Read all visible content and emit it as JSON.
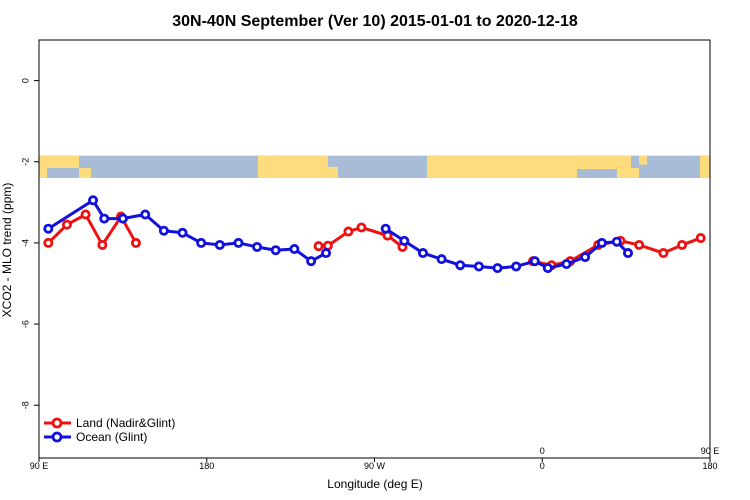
{
  "chart_data": {
    "type": "line",
    "title": "30N-40N September (Ver 10)   2015-01-01 to 2020-12-18",
    "xlabel": "Longitude (deg E)",
    "ylabel": "XCO2 - MLO trend (ppm)",
    "xlim": [
      90,
      450
    ],
    "ylim": [
      -9.3,
      1.0
    ],
    "xticks": [
      {
        "value": 90,
        "label": "90 E"
      },
      {
        "value": 180,
        "label": "180"
      },
      {
        "value": 270,
        "label": "90 W"
      },
      {
        "value": 360,
        "label": "0"
      },
      {
        "value": 450,
        "label": "180"
      }
    ],
    "xticks_top": [
      {
        "value": 360,
        "label": "0"
      },
      {
        "value": 450,
        "label": "90 E"
      }
    ],
    "yticks": [
      {
        "value": 0,
        "label": "0"
      },
      {
        "value": -2,
        "label": "-2"
      },
      {
        "value": -4,
        "label": "-4"
      },
      {
        "value": -6,
        "label": "-6"
      },
      {
        "value": -8,
        "label": "-8"
      }
    ],
    "map_band": {
      "y_top": -1.85,
      "y_bottom": -2.4,
      "ocean_color": "#a8bcd8",
      "land_color": "#fcdc7c"
    },
    "legend_position": "bottom-left",
    "series": [
      {
        "name": "Land (Nadir&Glint)",
        "color": "#ee1111",
        "x": [
          95,
          105,
          115,
          124,
          134,
          142
        ],
        "y": [
          -4.0,
          -3.55,
          -3.3,
          -4.05,
          -3.35,
          -4.0
        ],
        "x2": [
          240,
          245,
          256,
          263,
          277,
          285
        ],
        "y2": [
          -4.08,
          -4.07,
          -3.72,
          -3.62,
          -3.82,
          -4.1
        ],
        "x3": [
          355,
          365,
          375,
          390,
          402,
          412,
          425,
          435,
          445,
          455,
          465,
          473,
          482,
          495,
          503
        ],
        "y3": [
          -4.45,
          -4.55,
          -4.45,
          -4.05,
          -3.95,
          -4.05,
          -4.25,
          -4.05,
          -3.88,
          -4.0,
          -3.55,
          -3.3,
          -4.03,
          -3.35,
          -4.0
        ]
      },
      {
        "name": "Ocean (Glint)",
        "color": "#1111dd",
        "x": [
          95,
          119,
          125,
          135,
          147,
          157,
          167,
          177,
          187,
          197,
          207,
          217,
          227,
          236,
          244
        ],
        "y": [
          -3.65,
          -2.95,
          -3.4,
          -3.4,
          -3.3,
          -3.7,
          -3.75,
          -4.0,
          -4.05,
          -4.0,
          -4.1,
          -4.18,
          -4.15,
          -4.45,
          -4.25
        ],
        "x2": [
          276,
          286,
          296,
          306,
          316,
          326,
          336,
          346,
          356,
          363,
          373,
          383,
          392,
          400,
          406
        ],
        "y2": [
          -3.65,
          -3.95,
          -4.25,
          -4.4,
          -4.55,
          -4.58,
          -4.62,
          -4.58,
          -4.45,
          -4.62,
          -4.52,
          -4.35,
          -4.0,
          -3.97,
          -4.25
        ],
        "x3": [
          454,
          476,
          482,
          491,
          501,
          510,
          521,
          530,
          539
        ],
        "y3": [
          -3.62,
          -2.95,
          -3.42,
          -3.38,
          -3.3,
          -3.7,
          -3.75,
          -4.0,
          -4.0
        ]
      }
    ]
  }
}
